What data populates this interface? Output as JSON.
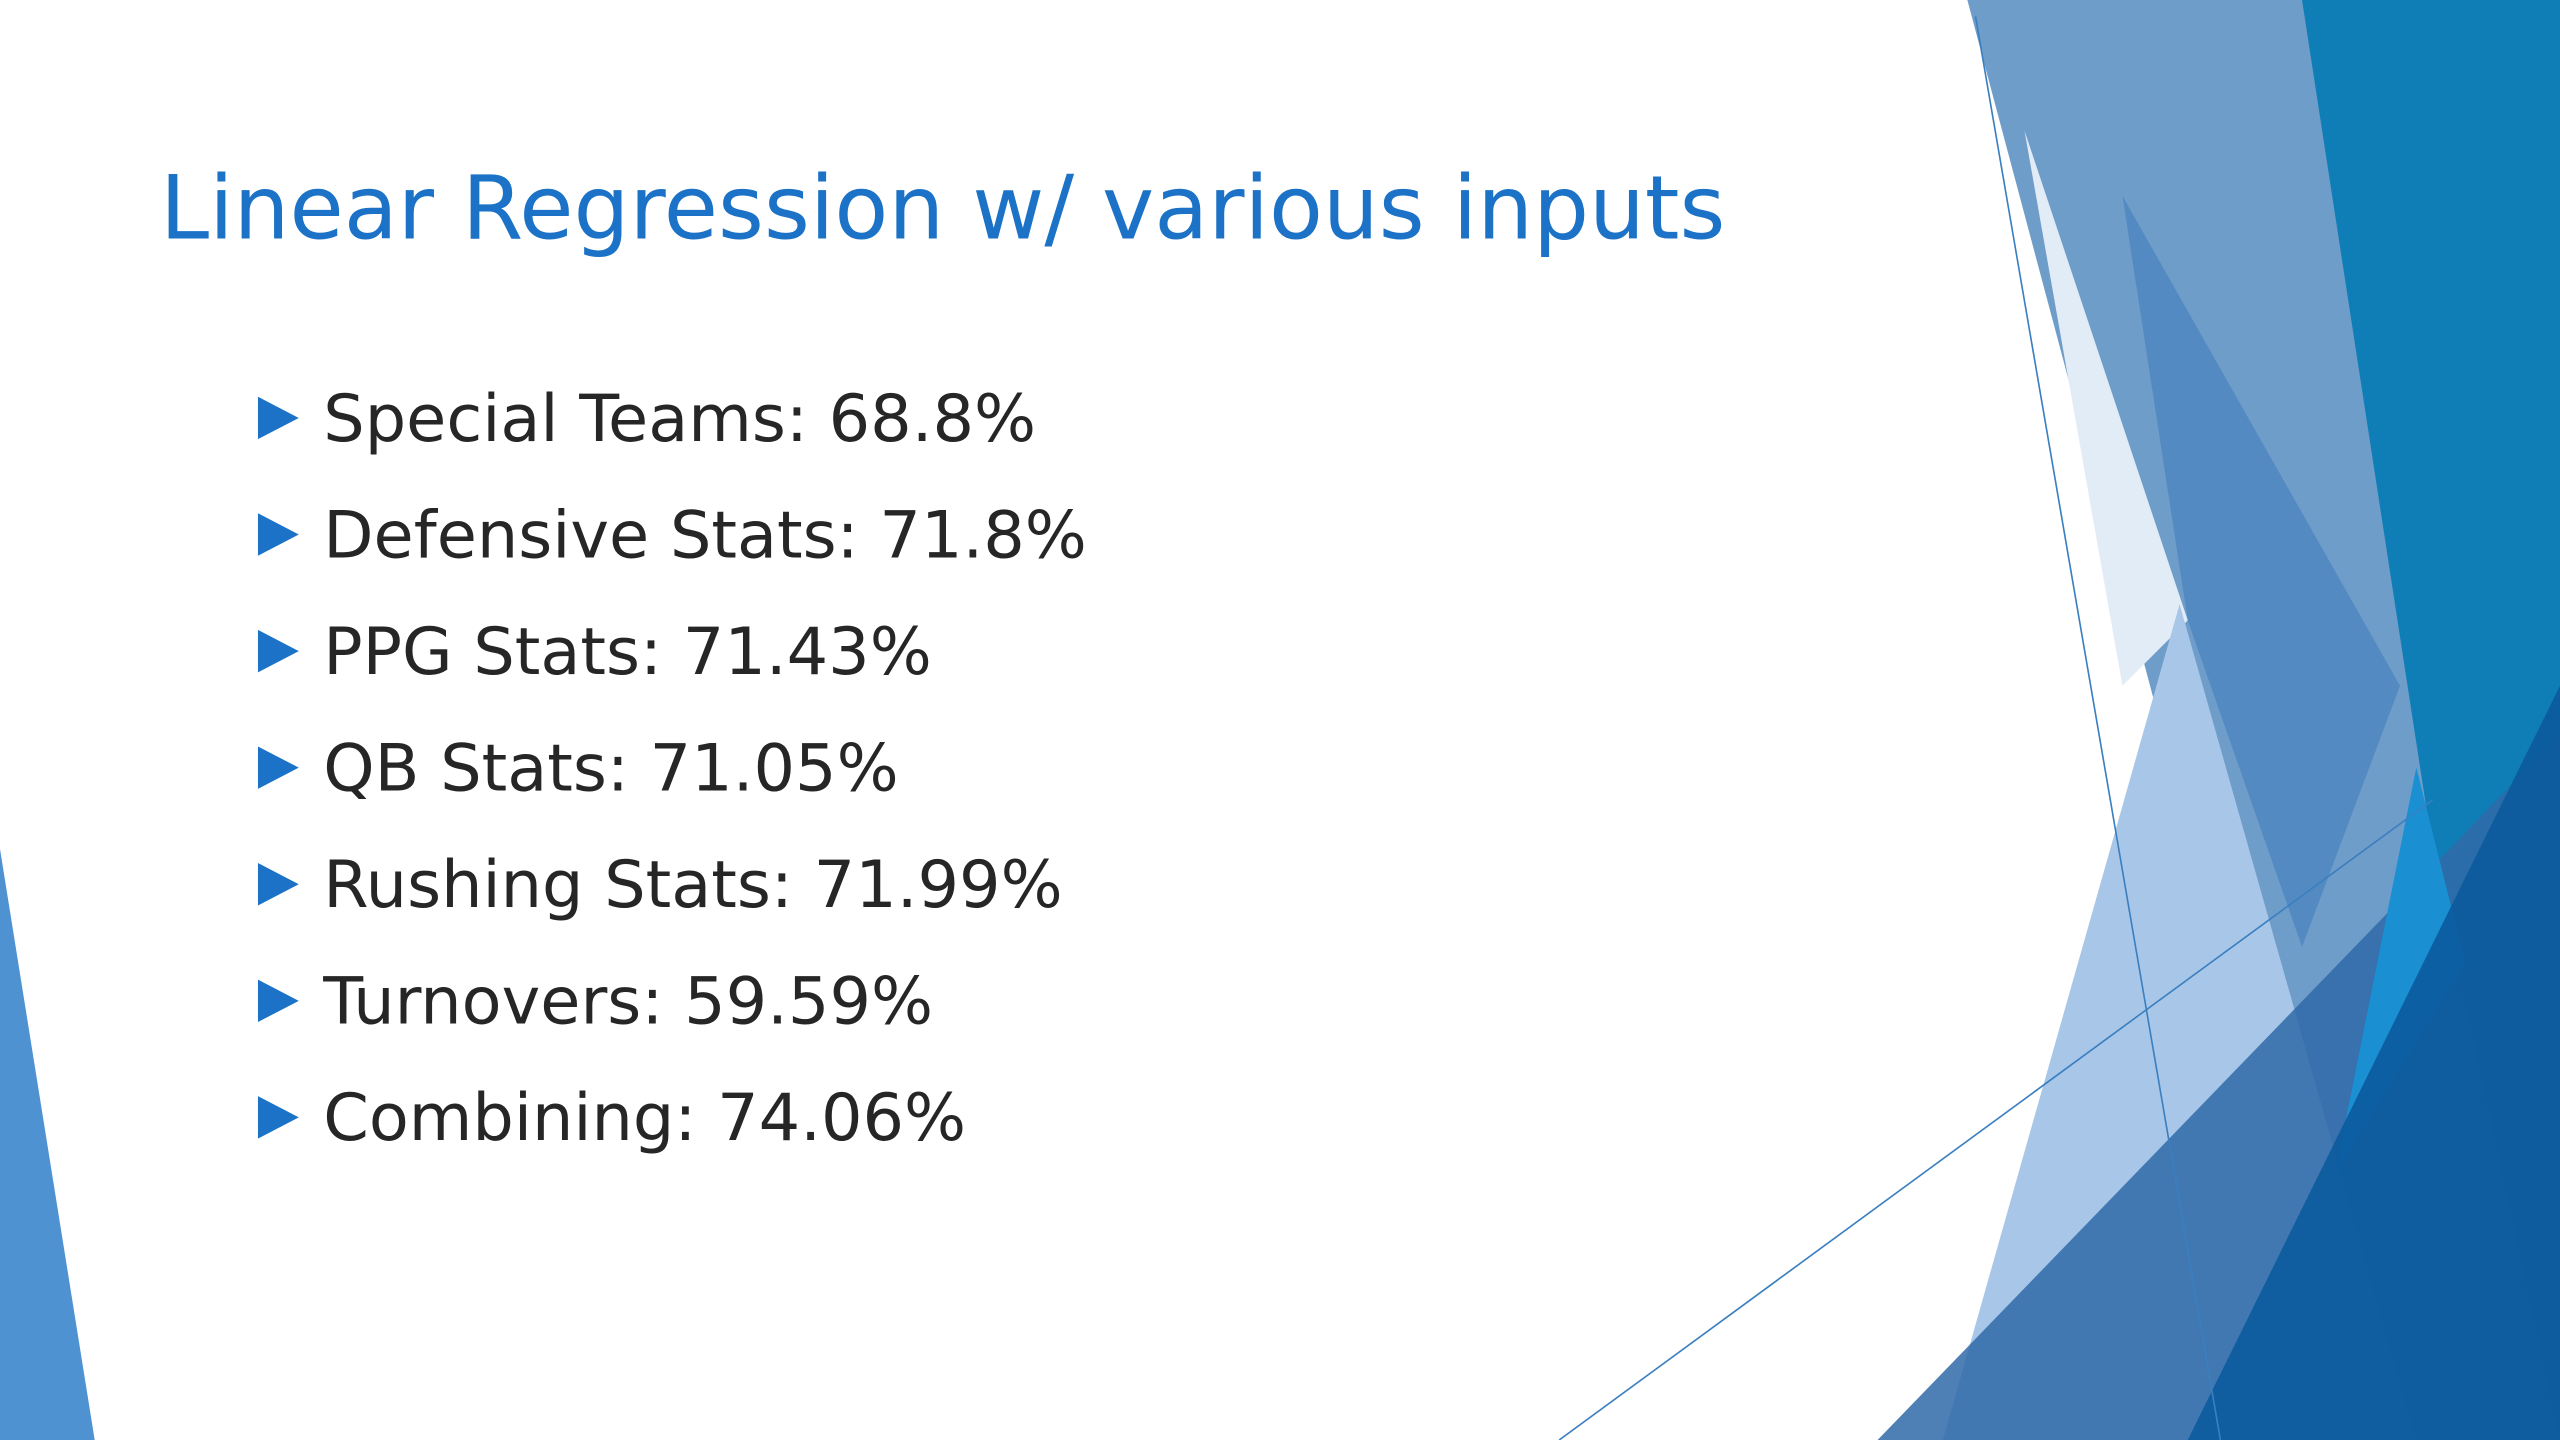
{
  "title": "Linear Regression w/ various inputs",
  "bullets": [
    "Special Teams: 68.8%",
    "Defensive Stats: 71.8%",
    "PPG Stats: 71.43%",
    "QB Stats: 71.05%",
    "Rushing Stats: 71.99%",
    "Turnovers: 59.59%",
    "Combining: 74.06%"
  ]
}
